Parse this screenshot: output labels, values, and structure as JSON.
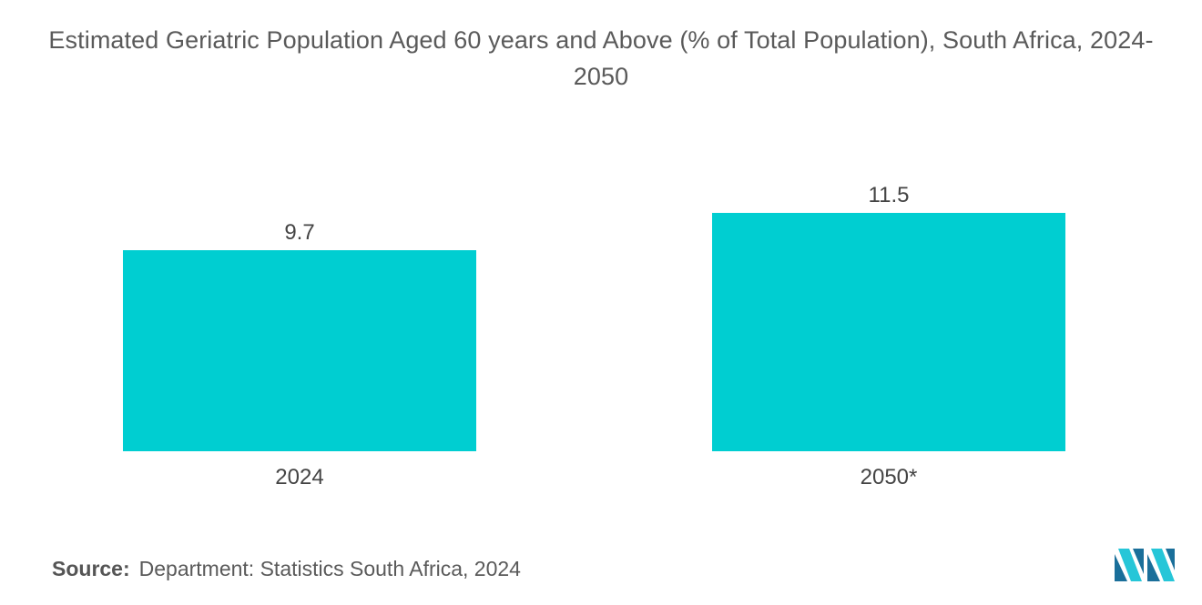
{
  "title": "Estimated Geriatric Population Aged 60 years and Above (% of Total Population), South Africa, 2024-2050",
  "source": {
    "label": "Source:",
    "text": "Department: Statistics South Africa, 2024"
  },
  "logo": {
    "icon": "mordor-intelligence-logo-icon"
  },
  "colors": {
    "bar": "#00CED1",
    "text": "#555555",
    "logo_dark": "#1a6f9a",
    "logo_light": "#26c6d8"
  },
  "chart_data": {
    "type": "bar",
    "title": "Estimated Geriatric Population Aged 60 years and Above (% of Total Population), South Africa, 2024-2050",
    "categories": [
      "2024",
      "2050*"
    ],
    "values": [
      9.7,
      11.5
    ],
    "data_labels": [
      "9.7",
      "11.5"
    ],
    "xlabel": "",
    "ylabel": "",
    "ylim": [
      0,
      11.5
    ],
    "grid": false,
    "legend": "none"
  }
}
